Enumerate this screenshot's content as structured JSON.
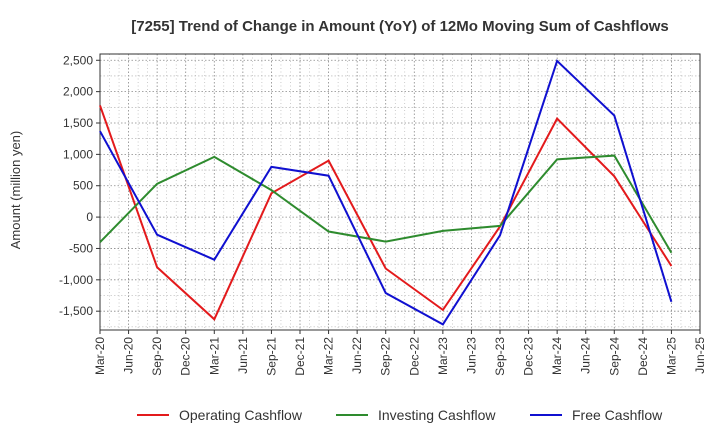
{
  "chart_data": {
    "type": "line",
    "title": "[7255]  Trend of Change in Amount (YoY) of 12Mo Moving Sum of Cashflows",
    "xlabel": "",
    "ylabel": "Amount (million yen)",
    "ylim": [
      -1800,
      2600
    ],
    "yticks": [
      -1500,
      -1000,
      -500,
      0,
      500,
      1000,
      1500,
      2000,
      2500
    ],
    "ytick_labels": [
      "-1,500",
      "-1,000",
      "-500",
      "0",
      "500",
      "1,000",
      "1,500",
      "2,000",
      "2,500"
    ],
    "x_tick_labels": [
      "Mar-20",
      "Jun-20",
      "Sep-20",
      "Dec-20",
      "Mar-21",
      "Jun-21",
      "Sep-21",
      "Dec-21",
      "Mar-22",
      "Jun-22",
      "Sep-22",
      "Dec-22",
      "Mar-23",
      "Jun-23",
      "Sep-23",
      "Dec-23",
      "Mar-24",
      "Jun-24",
      "Sep-24",
      "Dec-24",
      "Mar-25",
      "Jun-25"
    ],
    "grid": true,
    "legend_position": "bottom",
    "series": [
      {
        "name": "Operating Cashflow",
        "color": "#e31a1c",
        "x_index": [
          0,
          2,
          4,
          6,
          8,
          10,
          12,
          14,
          16,
          18,
          20
        ],
        "values": [
          1780,
          -800,
          -1630,
          380,
          900,
          -820,
          -1480,
          -150,
          1570,
          650,
          -780
        ]
      },
      {
        "name": "Investing Cashflow",
        "color": "#2e8b2e",
        "x_index": [
          0,
          2,
          4,
          6,
          8,
          10,
          12,
          14,
          16,
          18,
          20
        ],
        "values": [
          -400,
          530,
          960,
          430,
          -230,
          -390,
          -220,
          -140,
          920,
          980,
          -570
        ]
      },
      {
        "name": "Free Cashflow",
        "color": "#1010d0",
        "x_index": [
          0,
          2,
          4,
          6,
          8,
          10,
          12,
          14,
          16,
          18,
          20
        ],
        "values": [
          1370,
          -280,
          -680,
          800,
          660,
          -1210,
          -1710,
          -290,
          2490,
          1620,
          -1350
        ]
      }
    ]
  }
}
